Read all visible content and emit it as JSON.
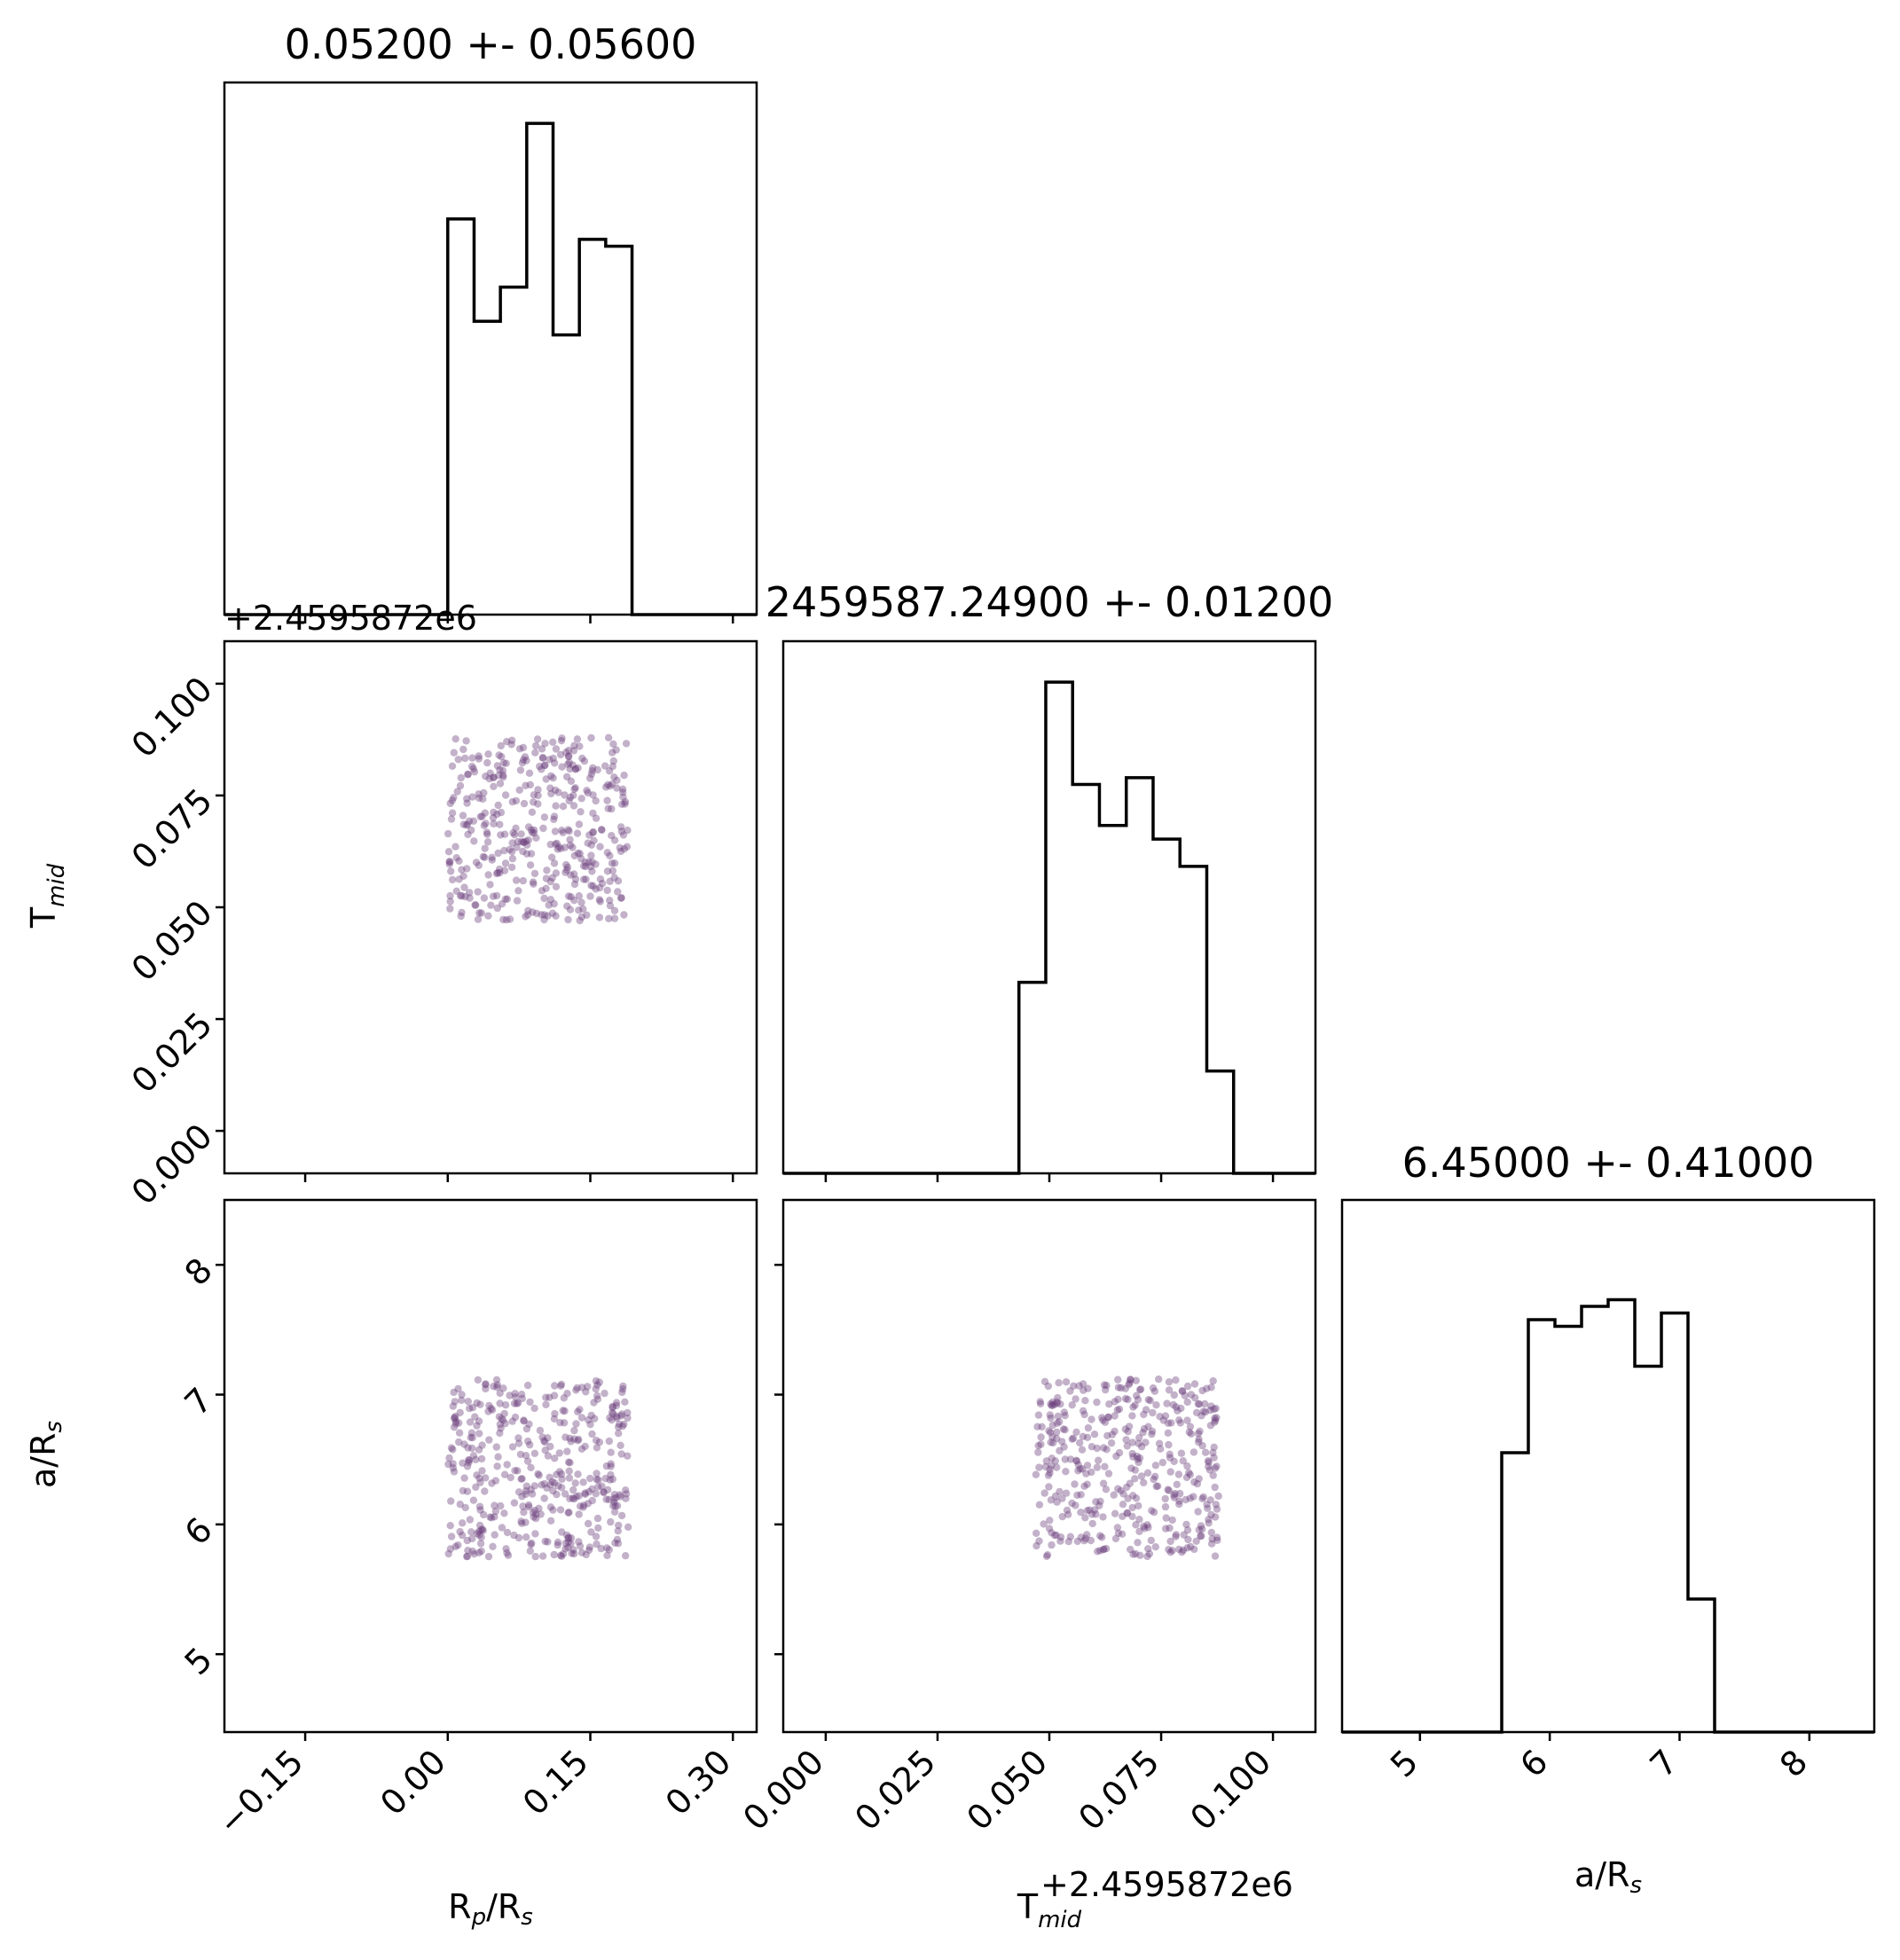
{
  "chart_data": {
    "type": "corner",
    "parameters": [
      {
        "key": "rp",
        "label_main": "R",
        "label_sub": "p",
        "label_tail": "/R",
        "label_sub2": "s"
      },
      {
        "key": "tmid",
        "label_main": "T",
        "label_sub": "mid",
        "label_tail": "",
        "label_sub2": ""
      },
      {
        "key": "ars",
        "label_main": "a/R",
        "label_sub": "s",
        "label_tail": "",
        "label_sub2": ""
      }
    ],
    "titles": [
      "0.05200 +- 0.05600",
      "2459587.24900 +- 0.01200",
      "6.45000 +- 0.41000"
    ],
    "offset_text": "+2.4595872e6",
    "axes": {
      "rp": {
        "lim": [
          -0.235,
          0.325
        ],
        "ticks": [
          -0.15,
          0.0,
          0.15,
          0.3
        ],
        "tick_labels": [
          "−0.15",
          "0.00",
          "0.15",
          "0.30"
        ]
      },
      "tmid": {
        "lim": [
          -0.0095,
          0.1095
        ],
        "ticks": [
          0.0,
          0.025,
          0.05,
          0.075,
          0.1
        ],
        "tick_labels": [
          "0.000",
          "0.025",
          "0.050",
          "0.075",
          "0.100"
        ]
      },
      "ars": {
        "lim": [
          4.4,
          8.5
        ],
        "ticks": [
          5,
          6,
          7,
          8
        ],
        "tick_labels": [
          "5",
          "6",
          "7",
          "8"
        ]
      }
    },
    "histograms": {
      "rp": {
        "bin_start": 0.0,
        "bin_width": 0.0277,
        "counts": [
          58,
          43,
          48,
          72,
          41,
          55,
          54
        ],
        "ymax": 78
      },
      "tmid": {
        "bin_start": 0.0432,
        "bin_width": 0.006,
        "counts": [
          28,
          72,
          57,
          51,
          58,
          49,
          45,
          15
        ],
        "ymax": 78
      },
      "ars": {
        "bin_start": 5.63,
        "bin_width": 0.205,
        "counts": [
          42,
          62,
          61,
          64,
          65,
          55,
          63,
          20
        ],
        "ymax": 80
      }
    },
    "scatter": {
      "color": "#6a3d7a",
      "n_points": 420,
      "ranges": {
        "rp": [
          0.0,
          0.19
        ],
        "tmid": [
          0.047,
          0.088
        ],
        "ars": [
          5.75,
          7.12
        ]
      }
    },
    "grid": false
  }
}
